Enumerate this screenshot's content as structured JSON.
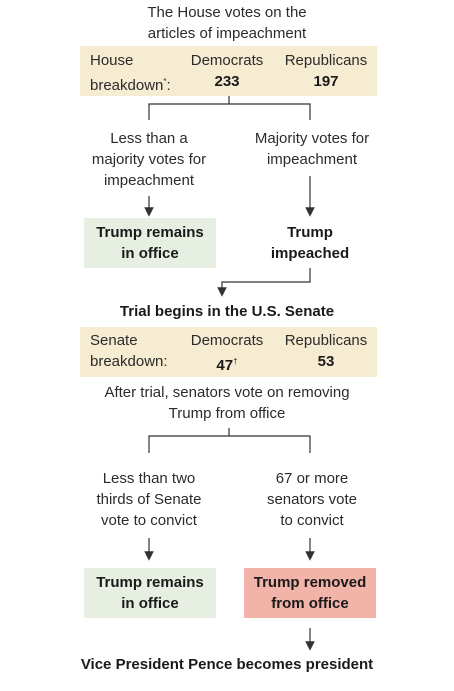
{
  "title": {
    "line1": "The House votes on the",
    "line2": "articles of impeachment"
  },
  "house": {
    "label_line1": "House",
    "label_line2": "breakdown",
    "label_note": "*",
    "label_colon": ":",
    "democrats_label": "Democrats",
    "democrats_value": "233",
    "republicans_label": "Republicans",
    "republicans_value": "197"
  },
  "house_outcomes": {
    "left": {
      "line1": "Less than a",
      "line2": "majority votes for",
      "line3": "impeachment"
    },
    "right": {
      "line1": "Majority votes for",
      "line2": "impeachment"
    }
  },
  "result_remains_1": {
    "line1": "Trump remains",
    "line2": "in office"
  },
  "result_impeached": {
    "line1": "Trump",
    "line2": "impeached"
  },
  "trial": "Trial begins in the U.S. Senate",
  "senate": {
    "label_line1": "Senate",
    "label_line2": "breakdown:",
    "democrats_label": "Democrats",
    "democrats_value": "47",
    "democrats_note": "†",
    "republicans_label": "Republicans",
    "republicans_value": "53"
  },
  "senate_vote": {
    "line1": "After trial, senators vote on removing",
    "line2": "Trump from office"
  },
  "senate_outcomes": {
    "left": {
      "line1": "Less than two",
      "line2": "thirds of Senate",
      "line3": "vote to convict"
    },
    "right": {
      "line1": "67 or more",
      "line2": "senators vote",
      "line3": "to convict"
    }
  },
  "result_remains_2": {
    "line1": "Trump remains",
    "line2": "in office"
  },
  "result_removed": {
    "line1": "Trump removed",
    "line2": "from office"
  },
  "final": "Vice President Pence becomes president",
  "colors": {
    "tan": "#f6ecd2",
    "green": "#e7efe3",
    "red": "#f2b3a9",
    "line": "#333333"
  }
}
